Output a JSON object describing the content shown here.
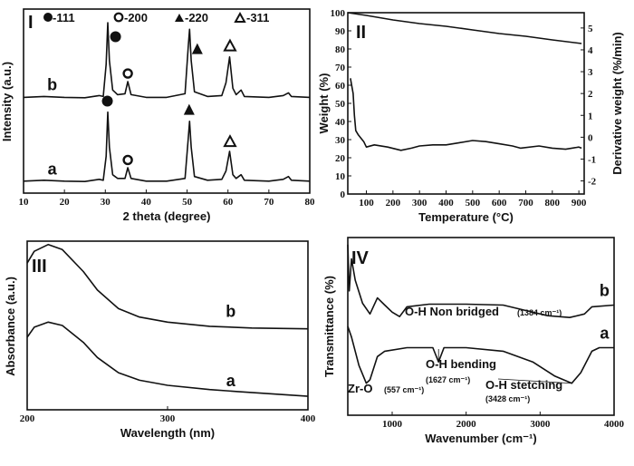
{
  "chart_data": [
    {
      "type": "line",
      "panel": "I",
      "xlabel": "2 theta (degree)",
      "ylabel": "Intensity (a.u.)",
      "xlim": [
        10,
        80
      ],
      "ylim": [
        0,
        100
      ],
      "xticks": [
        10,
        20,
        30,
        40,
        50,
        60,
        70,
        80
      ],
      "legend": [
        "●-111",
        "O-200",
        "▲-220",
        "Δ-311"
      ],
      "series": [
        {
          "name": "a",
          "points": [
            [
              10,
              6.5
            ],
            [
              15,
              7
            ],
            [
              20,
              6.5
            ],
            [
              25,
              6.3
            ],
            [
              28.5,
              7.5
            ],
            [
              29.5,
              7
            ],
            [
              30.2,
              20
            ],
            [
              30.6,
              44
            ],
            [
              31,
              25
            ],
            [
              31.8,
              10
            ],
            [
              33,
              8
            ],
            [
              34.8,
              8
            ],
            [
              35.5,
              13.8
            ],
            [
              36.3,
              8
            ],
            [
              40,
              6.5
            ],
            [
              45,
              6.5
            ],
            [
              49.5,
              8
            ],
            [
              50.3,
              30
            ],
            [
              50.6,
              39
            ],
            [
              51,
              25
            ],
            [
              51.8,
              9
            ],
            [
              55,
              7
            ],
            [
              58.5,
              7.5
            ],
            [
              59.5,
              12
            ],
            [
              60.4,
              22.7
            ],
            [
              61.2,
              10
            ],
            [
              62,
              8
            ],
            [
              63.2,
              10
            ],
            [
              64,
              7
            ],
            [
              70,
              6.5
            ],
            [
              73.5,
              7.5
            ],
            [
              74.8,
              9
            ],
            [
              75.5,
              7
            ],
            [
              80,
              6.5
            ]
          ]
        },
        {
          "name": "b",
          "points": [
            [
              10,
              52
            ],
            [
              15,
              52.5
            ],
            [
              20,
              52
            ],
            [
              25,
              51.8
            ],
            [
              28.5,
              53
            ],
            [
              29.5,
              52.5
            ],
            [
              30.2,
              70
            ],
            [
              30.6,
              92.6
            ],
            [
              31,
              72
            ],
            [
              31.8,
              56
            ],
            [
              33,
              53.5
            ],
            [
              34.8,
              54
            ],
            [
              35.5,
              60.6
            ],
            [
              36.3,
              53.5
            ],
            [
              40,
              52
            ],
            [
              45,
              52
            ],
            [
              49.5,
              54
            ],
            [
              50.3,
              80
            ],
            [
              50.6,
              89
            ],
            [
              51,
              72
            ],
            [
              51.8,
              55
            ],
            [
              55,
              52.5
            ],
            [
              58.5,
              53
            ],
            [
              59.5,
              60
            ],
            [
              60.4,
              74
            ],
            [
              61.2,
              57
            ],
            [
              62,
              53.5
            ],
            [
              63.2,
              56
            ],
            [
              64,
              52.5
            ],
            [
              70,
              52
            ],
            [
              73.5,
              53
            ],
            [
              74.8,
              54.5
            ],
            [
              75.5,
              52.5
            ],
            [
              80,
              52
            ]
          ]
        }
      ],
      "markers": [
        {
          "symbol": "filled-circle",
          "x": 32.5,
          "y": 85
        },
        {
          "symbol": "open-circle",
          "x": 35.5,
          "y": 65
        },
        {
          "symbol": "filled-triangle",
          "x": 52.5,
          "y": 78
        },
        {
          "symbol": "open-triangle",
          "x": 60.5,
          "y": 80
        },
        {
          "symbol": "filled-circle",
          "x": 30.5,
          "y": 50
        },
        {
          "symbol": "open-circle",
          "x": 35.5,
          "y": 18
        },
        {
          "symbol": "filled-triangle",
          "x": 50.5,
          "y": 45
        },
        {
          "symbol": "open-triangle",
          "x": 60.5,
          "y": 28
        }
      ],
      "curve_labels": [
        {
          "text": "b",
          "x": 17,
          "y": 56
        },
        {
          "text": "a",
          "x": 17,
          "y": 10
        }
      ]
    },
    {
      "type": "line",
      "panel": "II",
      "xlabel": "Temperature (°C)",
      "ylabel": "Weight (%)",
      "y2label": "Derivative weight (%/min)",
      "xlim": [
        30,
        920
      ],
      "ylim": [
        0,
        100
      ],
      "y2lim": [
        -2.6,
        5.7
      ],
      "xticks": [
        100,
        200,
        300,
        400,
        500,
        600,
        700,
        800,
        900
      ],
      "yticks": [
        0,
        10,
        20,
        30,
        40,
        50,
        60,
        70,
        80,
        90,
        100
      ],
      "y2ticks": [
        5,
        4,
        3,
        2,
        1,
        0,
        -1,
        -2
      ],
      "series": [
        {
          "axis": "left",
          "points": [
            [
              30,
              100
            ],
            [
              100,
              98.5
            ],
            [
              200,
              96
            ],
            [
              300,
              94
            ],
            [
              400,
              92.5
            ],
            [
              500,
              90.5
            ],
            [
              600,
              88.5
            ],
            [
              700,
              87
            ],
            [
              800,
              85
            ],
            [
              910,
              83
            ]
          ]
        },
        {
          "axis": "right",
          "points": [
            [
              40,
              2.7
            ],
            [
              50,
              2.0
            ],
            [
              55,
              1.0
            ],
            [
              60,
              0.3
            ],
            [
              70,
              0.1
            ],
            [
              90,
              -0.2
            ],
            [
              100,
              -0.45
            ],
            [
              130,
              -0.35
            ],
            [
              180,
              -0.45
            ],
            [
              230,
              -0.6
            ],
            [
              270,
              -0.5
            ],
            [
              300,
              -0.4
            ],
            [
              350,
              -0.35
            ],
            [
              400,
              -0.35
            ],
            [
              450,
              -0.25
            ],
            [
              500,
              -0.15
            ],
            [
              550,
              -0.2
            ],
            [
              600,
              -0.3
            ],
            [
              650,
              -0.4
            ],
            [
              680,
              -0.5
            ],
            [
              750,
              -0.4
            ],
            [
              800,
              -0.5
            ],
            [
              850,
              -0.55
            ],
            [
              900,
              -0.45
            ],
            [
              910,
              -0.5
            ]
          ]
        }
      ]
    },
    {
      "type": "line",
      "panel": "III",
      "xlabel": "Wavelength (nm)",
      "ylabel": "Absorbance (a.u.)",
      "xlim": [
        200,
        400
      ],
      "ylim": [
        0,
        100
      ],
      "xticks": [
        200,
        300,
        400
      ],
      "series": [
        {
          "name": "b",
          "points": [
            [
              200,
              87
            ],
            [
              205,
              94
            ],
            [
              215,
              98
            ],
            [
              225,
              95
            ],
            [
              240,
              82
            ],
            [
              250,
              71
            ],
            [
              265,
              60
            ],
            [
              280,
              55
            ],
            [
              300,
              52
            ],
            [
              330,
              49.5
            ],
            [
              360,
              48.5
            ],
            [
              400,
              48
            ]
          ]
        },
        {
          "name": "a",
          "points": [
            [
              200,
              43
            ],
            [
              205,
              49
            ],
            [
              215,
              52
            ],
            [
              225,
              50
            ],
            [
              240,
              40
            ],
            [
              250,
              31
            ],
            [
              265,
              22
            ],
            [
              280,
              17.5
            ],
            [
              300,
              14.5
            ],
            [
              330,
              12
            ],
            [
              350,
              10.8
            ],
            [
              400,
              8
            ]
          ]
        }
      ],
      "curve_labels": [
        {
          "text": "b",
          "x": 345,
          "y": 55
        },
        {
          "text": "a",
          "x": 345,
          "y": 14
        }
      ]
    },
    {
      "type": "line",
      "panel": "IV",
      "xlabel": "Wavenumber (cm⁻¹)",
      "ylabel": "Transmittance (%)",
      "xlim": [
        400,
        4000
      ],
      "ylim": [
        0,
        100
      ],
      "xticks": [
        1000,
        2000,
        3000,
        4000
      ],
      "series": [
        {
          "name": "b",
          "points": [
            [
              400,
              96
            ],
            [
              420,
              70
            ],
            [
              450,
              88
            ],
            [
              500,
              76
            ],
            [
              600,
              63
            ],
            [
              700,
              57
            ],
            [
              800,
              66
            ],
            [
              900,
              62
            ],
            [
              1000,
              58
            ],
            [
              1100,
              55.5
            ],
            [
              1200,
              61
            ],
            [
              1500,
              62.5
            ],
            [
              2000,
              62.5
            ],
            [
              2500,
              62
            ],
            [
              2800,
              59
            ],
            [
              3100,
              56
            ],
            [
              3400,
              55
            ],
            [
              3600,
              57
            ],
            [
              3700,
              61
            ],
            [
              4000,
              62
            ]
          ]
        },
        {
          "name": "a",
          "points": [
            [
              400,
              50
            ],
            [
              450,
              44
            ],
            [
              550,
              28
            ],
            [
              650,
              18
            ],
            [
              700,
              20
            ],
            [
              800,
              33
            ],
            [
              900,
              36
            ],
            [
              1200,
              38
            ],
            [
              1550,
              38
            ],
            [
              1627,
              30
            ],
            [
              1700,
              38
            ],
            [
              2000,
              38
            ],
            [
              2500,
              36
            ],
            [
              2900,
              30
            ],
            [
              3200,
              22
            ],
            [
              3428,
              18
            ],
            [
              3550,
              24
            ],
            [
              3700,
              36
            ],
            [
              3800,
              38
            ],
            [
              4000,
              38
            ]
          ]
        }
      ],
      "curve_labels": [
        {
          "text": "b",
          "x": 3870,
          "y": 67
        },
        {
          "text": "a",
          "x": 3870,
          "y": 43
        }
      ],
      "annotations": [
        {
          "text": "O-H Non bridged",
          "sub": "(1384 cm⁻¹)"
        },
        {
          "text": "O-H bending",
          "sub": "(1627 cm⁻¹)"
        },
        {
          "text": "Zr-O",
          "sub": "(557 cm⁻¹)"
        },
        {
          "text": "O-H stetching",
          "sub": "(3428 cm⁻¹)"
        }
      ]
    }
  ]
}
